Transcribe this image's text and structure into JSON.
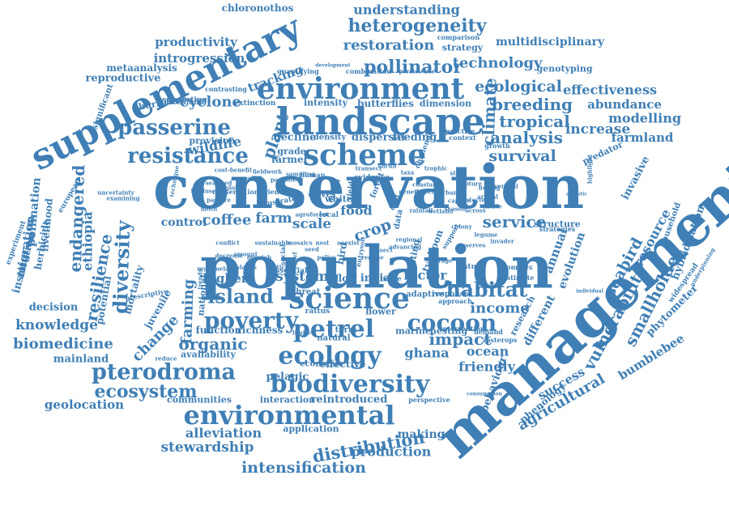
{
  "word_cloud": {
    "color": "#3f7fb5",
    "words": [
      "conservation",
      "population",
      "management",
      "supplementary",
      "landscape",
      "environment",
      "scheme",
      "biodiversity",
      "environmental",
      "science",
      "ecology",
      "petrel",
      "cocoon",
      "pterodroma",
      "habitat",
      "poverty",
      "resistance",
      "passerine",
      "diversity",
      "ecosystem",
      "island",
      "heterogeneity",
      "pollinator",
      "restoration",
      "understanding",
      "productivity",
      "technology",
      "ecological",
      "breeding",
      "tropical",
      "analysis",
      "survival",
      "effectiveness",
      "abundance",
      "modelling",
      "increase",
      "farmland",
      "invasive",
      "agricultural",
      "vulnerability",
      "smallholder",
      "seabird",
      "resource",
      "bumblebee",
      "phytometer",
      "distribution",
      "production",
      "intensification",
      "stewardship",
      "alleviation",
      "geolocation",
      "biomedicine",
      "knowledge",
      "decision",
      "mainland",
      "ghana",
      "ocean",
      "impact",
      "income",
      "service",
      "crop",
      "coffee",
      "farm",
      "scale",
      "organic",
      "farming",
      "change",
      "resilience",
      "ethiopia",
      "endangered",
      "control",
      "system",
      "factor",
      "flow",
      "indian",
      "success",
      "friendly",
      "behaviour",
      "phenology",
      "research",
      "different",
      "evolution",
      "annual",
      "cyclone",
      "wildlife",
      "plant",
      "tracking",
      "introgression",
      "reproductive",
      "metaanalysis",
      "chloronothos",
      "multidisciplinary",
      "strategy",
      "genotyping",
      "climate",
      "butterflies",
      "dimension",
      "intensity",
      "decline",
      "density",
      "dispersal",
      "feeding",
      "farmer",
      "grade",
      "provision",
      "pollination",
      "livelihood",
      "herbicide",
      "migration",
      "experiment",
      "institution",
      "potential",
      "mortality",
      "juvenile",
      "higher",
      "national",
      "function",
      "richness",
      "availability",
      "pelagic",
      "communities",
      "interaction",
      "reintroduced",
      "making",
      "application",
      "hybridisation",
      "household",
      "widespread",
      "predator",
      "structure",
      "highlight",
      "food",
      "olive",
      "white",
      "flower",
      "marine",
      "nesting",
      "rattus",
      "threat",
      "term",
      "natural",
      "effective",
      "economic",
      "european",
      "biocultural",
      "extinction",
      "hurricane",
      "significant",
      "contrasting",
      "quantifying",
      "combination",
      "persistence",
      "development",
      "comparison",
      "practice",
      "context",
      "more",
      "study",
      "complex",
      "estimate",
      "demand",
      "zosterops",
      "intervention",
      "perspective",
      "consumption",
      "individual",
      "underpinning",
      "strategies",
      "atlantic",
      "uncertainty",
      "examining",
      "technique",
      "local",
      "human",
      "evidence",
      "yield",
      "model",
      "bird",
      "forest",
      "data",
      "cost",
      "entry",
      "soil",
      "hunting",
      "typhoon",
      "support",
      "adaptive",
      "response",
      "approach",
      "limited",
      "social",
      "essential",
      "relief",
      "prescriptive",
      "supporting",
      "agroforest",
      "global",
      "illustrate",
      "conservation-friendly",
      "challenge",
      "growth",
      "advancing",
      "regional",
      "mosaics",
      "sustainable",
      "amount",
      "trends",
      "reduce",
      "myzomela",
      "decrease",
      "conflict",
      "urban",
      "captive",
      "season",
      "protected",
      "wetland",
      "across",
      "arrival",
      "native",
      "fishing",
      "vertical",
      "rainfall",
      "genetic",
      "detection",
      "coastal",
      "bycatch",
      "exotic",
      "islands",
      "colony",
      "reserves",
      "forage",
      "insect",
      "regime",
      "coexist",
      "policy",
      "nest",
      "seed",
      "sampling",
      "transect",
      "shrub",
      "taxa",
      "trophic",
      "stock",
      "capture",
      "spatial",
      "cost-benefit",
      "fieldwork",
      "parasite",
      "seaweed",
      "landuse",
      "pasture",
      "moth",
      "legume",
      "invader"
    ]
  }
}
